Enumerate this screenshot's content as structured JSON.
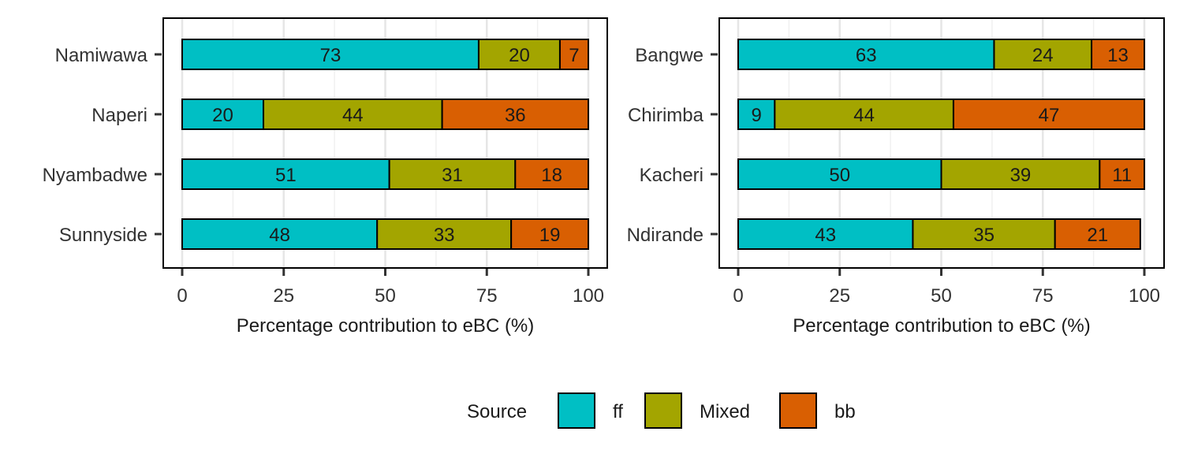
{
  "chart_data": [
    {
      "type": "bar",
      "orientation": "horizontal",
      "stacked": true,
      "categories": [
        "Namiwawa",
        "Naperi",
        "Nyambadwe",
        "Sunnyside"
      ],
      "series": [
        {
          "name": "ff",
          "color": "#00BFC4",
          "values": [
            73,
            20,
            51,
            48
          ]
        },
        {
          "name": "Mixed",
          "color": "#A3A500",
          "values": [
            20,
            44,
            31,
            33
          ]
        },
        {
          "name": "bb",
          "color": "#D95F02",
          "values": [
            7,
            36,
            18,
            19
          ]
        }
      ],
      "xlabel": "Percentage contribution to eBC (%)",
      "xlim": [
        0,
        100
      ],
      "xticks": [
        0,
        25,
        50,
        75,
        100
      ],
      "grid": true
    },
    {
      "type": "bar",
      "orientation": "horizontal",
      "stacked": true,
      "categories": [
        "Bangwe",
        "Chirimba",
        "Kacheri",
        "Ndirande"
      ],
      "series": [
        {
          "name": "ff",
          "color": "#00BFC4",
          "values": [
            63,
            9,
            50,
            43
          ]
        },
        {
          "name": "Mixed",
          "color": "#A3A500",
          "values": [
            24,
            44,
            39,
            35
          ]
        },
        {
          "name": "bb",
          "color": "#D95F02",
          "values": [
            13,
            47,
            11,
            21
          ]
        }
      ],
      "xlabel": "Percentage contribution to eBC (%)",
      "xlim": [
        0,
        100
      ],
      "xticks": [
        0,
        25,
        50,
        75,
        100
      ],
      "grid": true
    }
  ],
  "legend": {
    "title": "Source",
    "position": "bottom",
    "items": [
      {
        "label": "ff",
        "color": "#00BFC4"
      },
      {
        "label": "Mixed",
        "color": "#A3A500"
      },
      {
        "label": "bb",
        "color": "#D95F02"
      }
    ]
  }
}
